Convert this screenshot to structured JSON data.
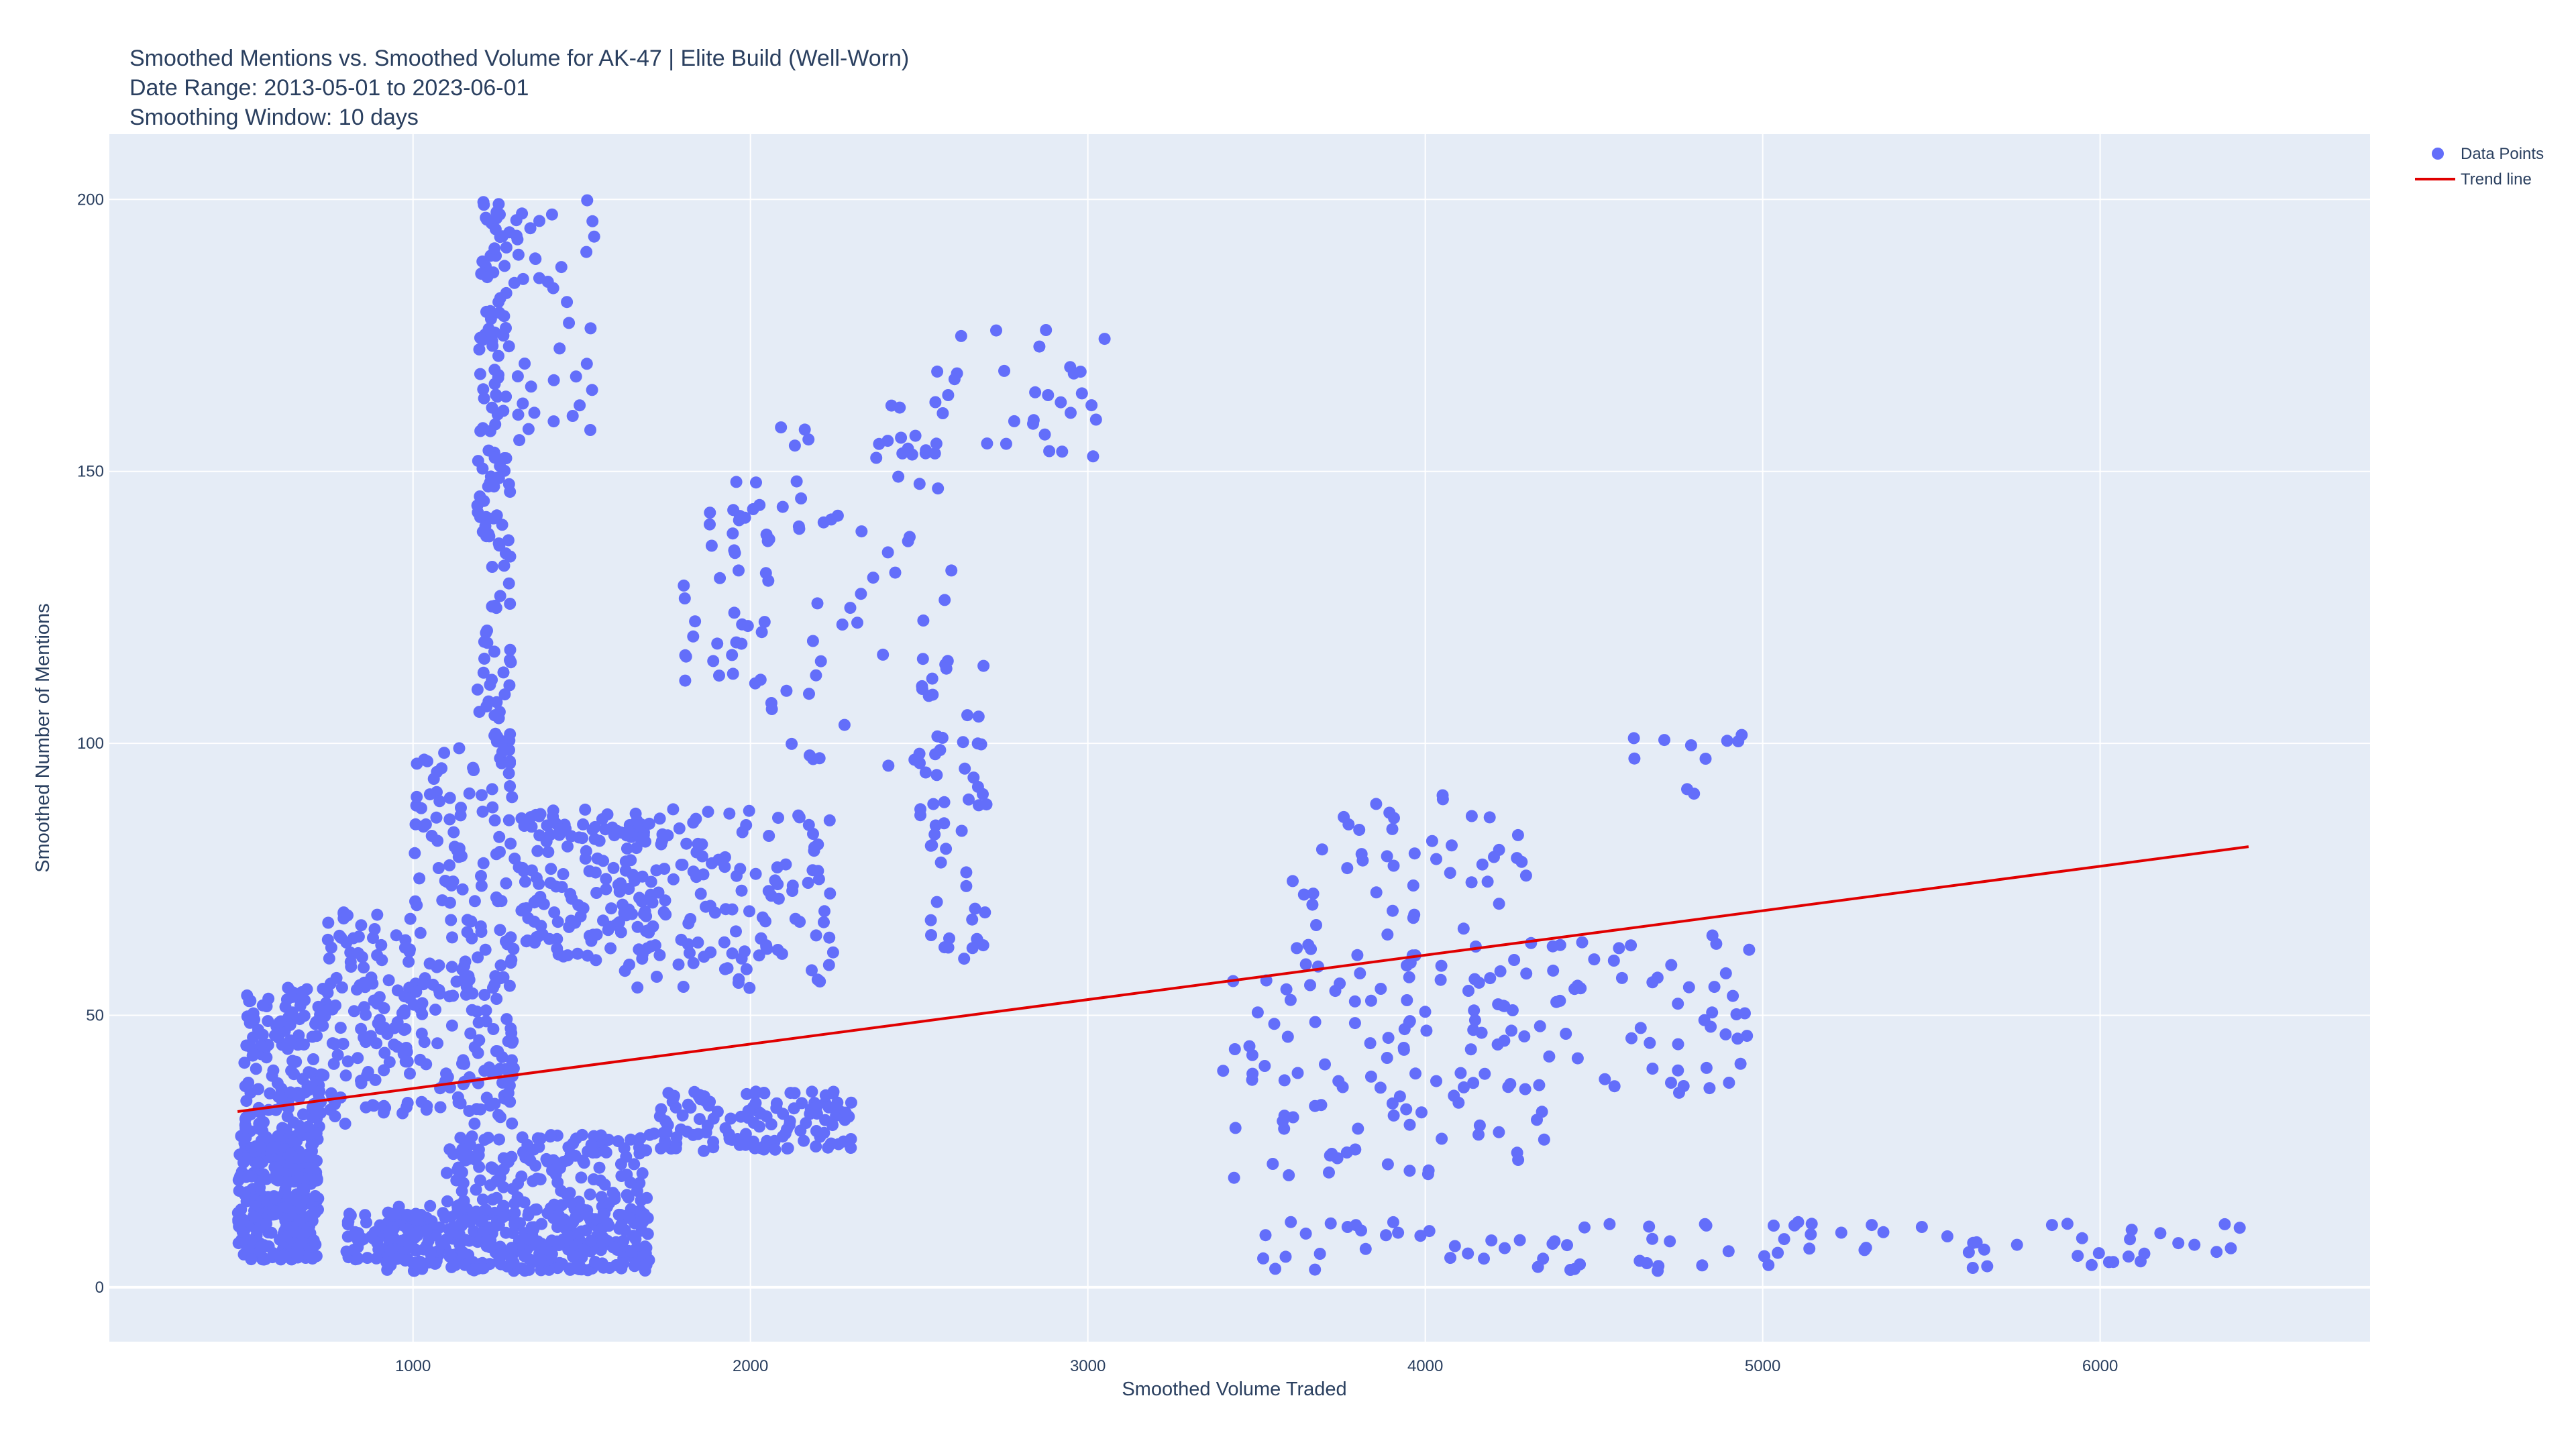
{
  "chart_data": {
    "type": "scatter",
    "title_lines": [
      "Smoothed Mentions vs. Smoothed Volume for AK-47 | Elite Build (Well-Worn)",
      "Date Range: 2013-05-01 to 2023-06-01",
      "Smoothing Window: 10 days"
    ],
    "xlabel": "Smoothed Volume Traded",
    "ylabel": "Smoothed Number of Mentions",
    "xlim": [
      100,
      6800
    ],
    "ylim": [
      -10,
      212
    ],
    "x_ticks": [
      1000,
      2000,
      3000,
      4000,
      5000,
      6000
    ],
    "y_ticks": [
      0,
      50,
      100,
      150,
      200
    ],
    "grid": true,
    "legend_position": "top-right, outside plot",
    "colors": {
      "points": "#636efa",
      "trend": "#e00000",
      "plot_bg": "#e5ecf6",
      "grid": "#ffffff"
    },
    "series": [
      {
        "name": "Data Points",
        "mode": "markers",
        "clusters": [
          {
            "x": [
              480,
              720
            ],
            "y": [
              5,
              28
            ],
            "n": 320
          },
          {
            "x": [
              500,
              740
            ],
            "y": [
              28,
              56
            ],
            "n": 140
          },
          {
            "x": [
              740,
              1000
            ],
            "y": [
              30,
              70
            ],
            "n": 120
          },
          {
            "x": [
              800,
              1000
            ],
            "y": [
              5,
              14
            ],
            "n": 60
          },
          {
            "x": [
              920,
              1700
            ],
            "y": [
              3,
              15
            ],
            "n": 380
          },
          {
            "x": [
              1100,
              1700
            ],
            "y": [
              15,
              28
            ],
            "n": 140
          },
          {
            "x": [
              1000,
              1300
            ],
            "y": [
              30,
              60
            ],
            "n": 110
          },
          {
            "x": [
              1000,
              1300
            ],
            "y": [
              60,
              100
            ],
            "n": 90
          },
          {
            "x": [
              1190,
              1290
            ],
            "y": [
              100,
              200
            ],
            "n": 140
          },
          {
            "x": [
              1300,
              1550
            ],
            "y": [
              155,
              200
            ],
            "n": 40
          },
          {
            "x": [
              1300,
              1700
            ],
            "y": [
              60,
              88
            ],
            "n": 130
          },
          {
            "x": [
              1700,
              2300
            ],
            "y": [
              25,
              36
            ],
            "n": 130
          },
          {
            "x": [
              1600,
              2250
            ],
            "y": [
              55,
              88
            ],
            "n": 150
          },
          {
            "x": [
              1800,
              2050
            ],
            "y": [
              110,
              150
            ],
            "n": 40
          },
          {
            "x": [
              2050,
              2600
            ],
            "y": [
              95,
              160
            ],
            "n": 60
          },
          {
            "x": [
              2400,
              3050
            ],
            "y": [
              150,
              176
            ],
            "n": 40
          },
          {
            "x": [
              2500,
              2700
            ],
            "y": [
              60,
              115
            ],
            "n": 50
          },
          {
            "x": [
              3400,
              4400
            ],
            "y": [
              20,
              60
            ],
            "n": 90
          },
          {
            "x": [
              3600,
              4300
            ],
            "y": [
              60,
              92
            ],
            "n": 50
          },
          {
            "x": [
              3900,
              5000
            ],
            "y": [
              35,
              65
            ],
            "n": 80
          },
          {
            "x": [
              3500,
              6450
            ],
            "y": [
              3,
              12
            ],
            "n": 90
          },
          {
            "x": [
              4600,
              4950
            ],
            "y": [
              90,
              104
            ],
            "n": 10
          }
        ]
      },
      {
        "name": "Trend line",
        "mode": "lines",
        "x": [
          480,
          6440
        ],
        "y": [
          32.3,
          81.0
        ]
      }
    ]
  }
}
